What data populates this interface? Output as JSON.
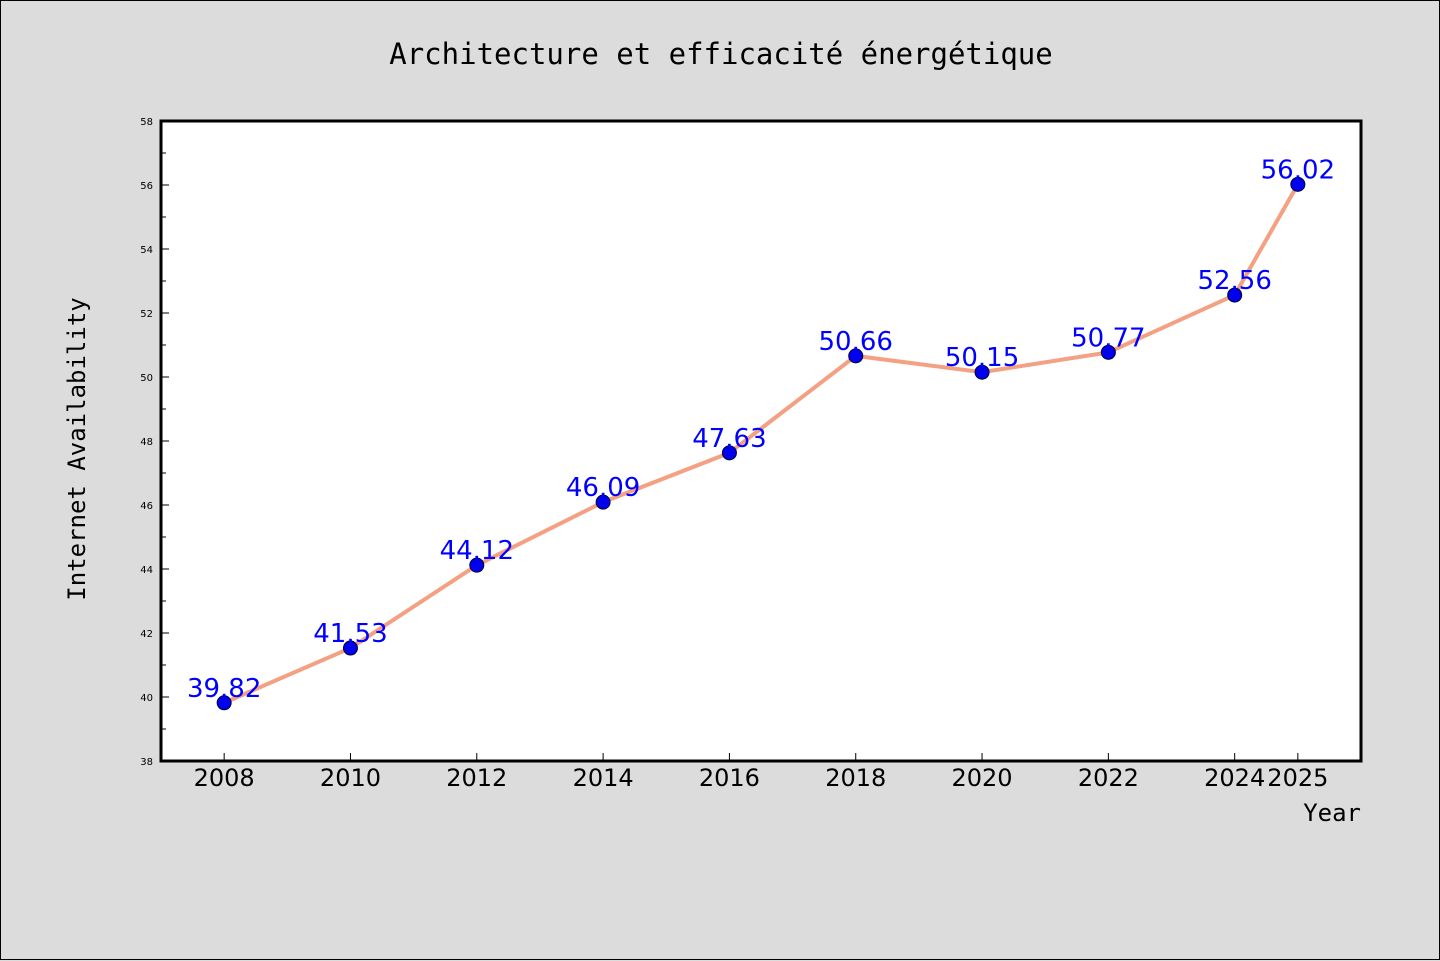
{
  "chart_data": {
    "type": "line",
    "title": "Architecture et efficacité énergétique",
    "xlabel": "Year",
    "ylabel": "Internet Availability",
    "x": [
      "2008",
      "2010",
      "2012",
      "2014",
      "2016",
      "2018",
      "2020",
      "2022",
      "2024",
      "2025"
    ],
    "series": [
      {
        "values": [
          39.82,
          41.53,
          44.12,
          46.09,
          47.63,
          50.66,
          50.15,
          50.77,
          52.56,
          56.02
        ],
        "data_labels": [
          "39.82",
          "41.53",
          "44.12",
          "46.09",
          "47.63",
          "50.66",
          "50.15",
          "50.77",
          "52.56",
          "56.02"
        ]
      }
    ],
    "ylim": [
      38,
      58
    ],
    "yticks": [
      "38",
      "40",
      "42",
      "44",
      "46",
      "48",
      "50",
      "52",
      "54",
      "56",
      "58"
    ],
    "grid": false,
    "line_color": "#f4a083",
    "marker_color": "#0000ee",
    "label_color": "#0000ff",
    "background_color": "#dcdcdc",
    "plot_background_color": "#ffffff"
  }
}
